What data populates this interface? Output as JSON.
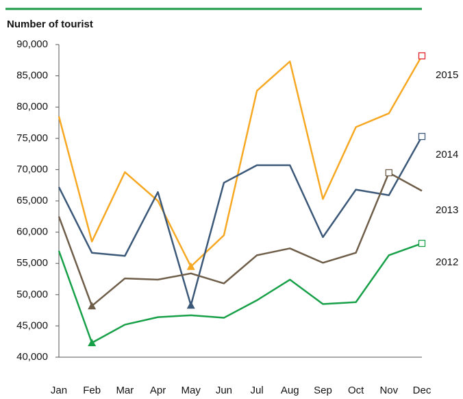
{
  "chart_data": {
    "type": "line",
    "title": "Number of tourist",
    "categories": [
      "Jan",
      "Feb",
      "Mar",
      "Apr",
      "May",
      "Jun",
      "Jul",
      "Aug",
      "Sep",
      "Oct",
      "Nov",
      "Dec"
    ],
    "ylim": [
      40000,
      90000
    ],
    "yticks": [
      {
        "value": 40000,
        "label": "40,000"
      },
      {
        "value": 45000,
        "label": "45,000"
      },
      {
        "value": 50000,
        "label": "50,000"
      },
      {
        "value": 55000,
        "label": "55,000"
      },
      {
        "value": 60000,
        "label": "60,000"
      },
      {
        "value": 65000,
        "label": "65,000"
      },
      {
        "value": 70000,
        "label": "70,000"
      },
      {
        "value": 75000,
        "label": "75,000"
      },
      {
        "value": 80000,
        "label": "80,000"
      },
      {
        "value": 85000,
        "label": "85,000"
      },
      {
        "value": 90000,
        "label": "90,000"
      }
    ],
    "grid": false,
    "series": [
      {
        "name": "2015",
        "color": "#f7a823",
        "max_color": "#e0202a",
        "values": [
          78500,
          58500,
          69600,
          65000,
          54500,
          59500,
          82600,
          87300,
          65300,
          76800,
          79000,
          88200
        ]
      },
      {
        "name": "2014",
        "color": "#3b5878",
        "values": [
          67200,
          56700,
          56200,
          66400,
          48300,
          67900,
          70700,
          70700,
          59200,
          66800,
          65900,
          75300
        ]
      },
      {
        "name": "2013",
        "color": "#6e5d48",
        "values": [
          62500,
          48200,
          52600,
          52400,
          53400,
          51800,
          56300,
          57400,
          55100,
          56700,
          69500,
          66600
        ]
      },
      {
        "name": "2012",
        "color": "#17a048",
        "values": [
          57000,
          42300,
          45200,
          46400,
          46700,
          46300,
          49100,
          52400,
          48500,
          48800,
          56300,
          58200
        ]
      }
    ]
  }
}
